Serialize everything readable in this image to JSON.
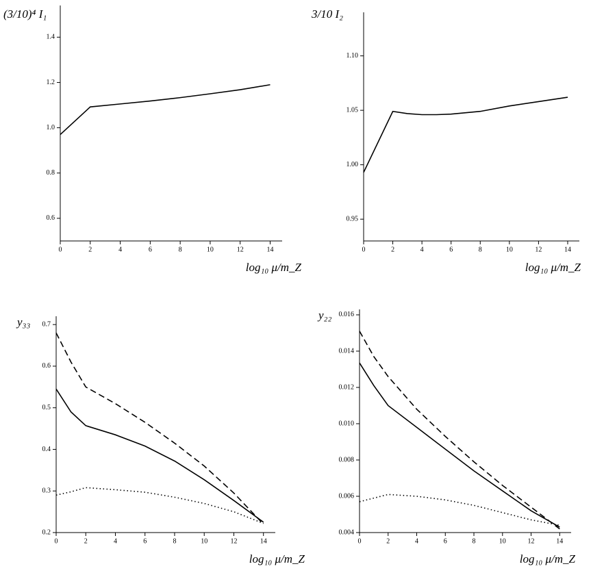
{
  "chart_data": [
    {
      "type": "line",
      "ylabel": "(3/10)⁴ I₁",
      "xlabel": "log₁₀ μ/m_Z",
      "x": [
        0,
        2,
        4,
        6,
        8,
        10,
        12,
        14
      ],
      "series": [
        {
          "color": "#000000",
          "dash": "solid",
          "values": [
            0.97,
            1.092,
            1.105,
            1.118,
            1.133,
            1.15,
            1.168,
            1.19
          ]
        }
      ],
      "xlim": [
        0,
        14.8
      ],
      "ylim": [
        0.5,
        1.54
      ],
      "xticks": [
        0,
        2,
        4,
        6,
        8,
        10,
        12,
        14
      ],
      "yticks": [
        0.6,
        0.8,
        {
          "value": 1.0,
          "label": "1.0"
        },
        1.2,
        1.4
      ]
    },
    {
      "type": "line",
      "ylabel": "3/10 I₂",
      "xlabel": "log₁₀ μ/m_Z",
      "x": [
        0,
        2,
        3,
        4,
        5,
        6,
        8,
        10,
        12,
        14
      ],
      "series": [
        {
          "color": "#000000",
          "dash": "solid",
          "values": [
            0.993,
            1.049,
            1.047,
            1.046,
            1.046,
            1.0465,
            1.049,
            1.054,
            1.058,
            1.062
          ]
        }
      ],
      "xlim": [
        0,
        14.8
      ],
      "ylim": [
        0.93,
        1.14
      ],
      "xticks": [
        0,
        2,
        4,
        6,
        8,
        10,
        12,
        14
      ],
      "yticks": [
        0.95,
        {
          "value": 1.0,
          "label": "1.00"
        },
        1.05,
        {
          "value": 1.1,
          "label": "1.10"
        }
      ]
    },
    {
      "type": "line",
      "ylabel": "y₃₃",
      "xlabel": "log₁₀ μ/m_Z",
      "x": [
        0,
        1,
        2,
        4,
        6,
        8,
        10,
        12,
        14
      ],
      "series": [
        {
          "color": "#000000",
          "dash": "solid",
          "values": [
            0.545,
            0.49,
            0.457,
            0.435,
            0.408,
            0.372,
            0.327,
            0.277,
            0.225
          ]
        },
        {
          "color": "#000000",
          "dash": "dashed",
          "values": [
            0.68,
            0.61,
            0.55,
            0.51,
            0.465,
            0.415,
            0.36,
            0.295,
            0.22
          ]
        },
        {
          "color": "#000000",
          "dash": "dotted",
          "values": [
            0.29,
            0.298,
            0.308,
            0.303,
            0.297,
            0.285,
            0.27,
            0.25,
            0.222
          ]
        }
      ],
      "xlim": [
        0,
        14.8
      ],
      "ylim": [
        0.2,
        0.72
      ],
      "xticks": [
        0,
        2,
        4,
        6,
        8,
        10,
        12,
        14
      ],
      "yticks": [
        0.2,
        0.3,
        0.4,
        0.5,
        0.6,
        0.7
      ]
    },
    {
      "type": "line",
      "ylabel": "y₂₂",
      "xlabel": "log₁₀ μ/m_Z",
      "x": [
        0,
        1,
        2,
        4,
        6,
        8,
        10,
        12,
        14
      ],
      "series": [
        {
          "color": "#000000",
          "dash": "solid",
          "values": [
            0.01335,
            0.0121,
            0.011,
            0.0098,
            0.0086,
            0.0074,
            0.0063,
            0.0052,
            0.0043
          ]
        },
        {
          "color": "#000000",
          "dash": "dashed",
          "values": [
            0.0151,
            0.0137,
            0.0126,
            0.0108,
            0.0093,
            0.0079,
            0.0066,
            0.0054,
            0.0042
          ]
        },
        {
          "color": "#000000",
          "dash": "dotted",
          "values": [
            0.0057,
            0.0059,
            0.0061,
            0.006,
            0.0058,
            0.0055,
            0.0051,
            0.0047,
            0.0044
          ]
        }
      ],
      "xlim": [
        0,
        14.8
      ],
      "ylim": [
        0.004,
        0.0163
      ],
      "xticks": [
        0,
        2,
        4,
        6,
        8,
        10,
        12,
        14
      ],
      "yticks": [
        0.004,
        0.006,
        0.008,
        {
          "value": 0.01,
          "label": "0.010"
        },
        0.012,
        0.014,
        0.016
      ]
    }
  ]
}
